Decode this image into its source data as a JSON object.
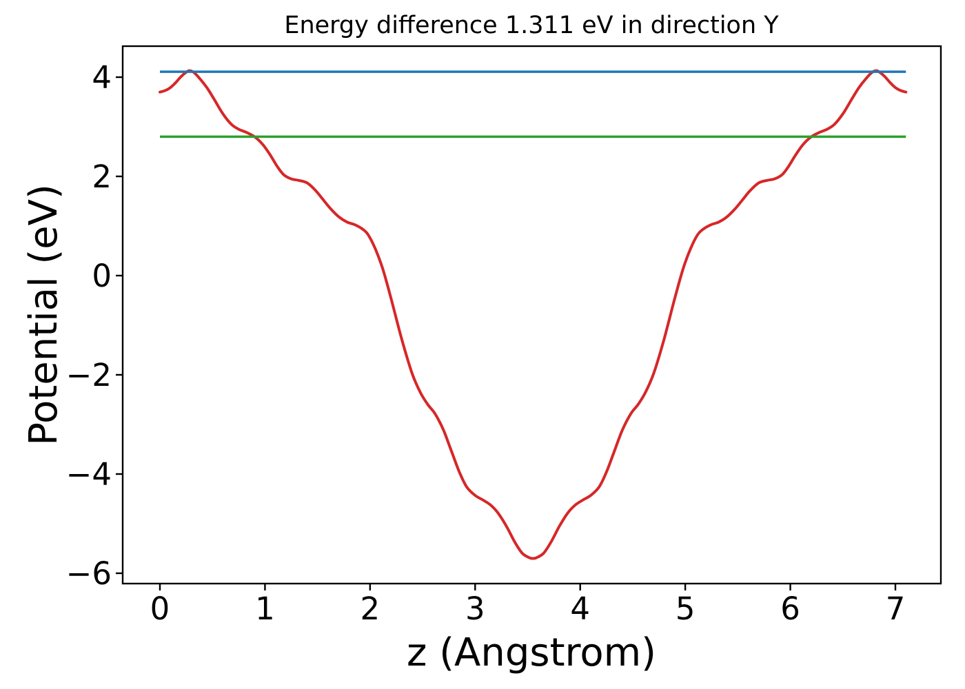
{
  "figure": {
    "background": "#ffffff",
    "text_color": "#000000"
  },
  "chart_data": {
    "type": "line",
    "title": "Energy difference 1.311 eV in direction Y",
    "xlabel": "z (Angstrom)",
    "ylabel": "Potential (eV)",
    "energy_difference_ev": 1.311,
    "direction": "Y",
    "xlim": [
      -0.355,
      7.433
    ],
    "ylim": [
      -6.21,
      4.63
    ],
    "x_ticks": [
      0,
      1,
      2,
      3,
      4,
      5,
      6,
      7
    ],
    "y_ticks": [
      4,
      2,
      0,
      -2,
      -4,
      -6
    ],
    "grid": false,
    "legend": "none",
    "series": [
      {
        "name": "potential-curve",
        "kind": "curve",
        "color": "#d62728",
        "line_width": 4,
        "points": [
          [
            0.0,
            3.7
          ],
          [
            0.05,
            3.73
          ],
          [
            0.1,
            3.79
          ],
          [
            0.15,
            3.89
          ],
          [
            0.2,
            4.01
          ],
          [
            0.25,
            4.1
          ],
          [
            0.28,
            4.13
          ],
          [
            0.32,
            4.1
          ],
          [
            0.38,
            3.97
          ],
          [
            0.45,
            3.78
          ],
          [
            0.52,
            3.54
          ],
          [
            0.6,
            3.26
          ],
          [
            0.68,
            3.05
          ],
          [
            0.75,
            2.95
          ],
          [
            0.82,
            2.89
          ],
          [
            0.9,
            2.8
          ],
          [
            0.98,
            2.64
          ],
          [
            1.05,
            2.43
          ],
          [
            1.12,
            2.19
          ],
          [
            1.18,
            2.03
          ],
          [
            1.25,
            1.95
          ],
          [
            1.32,
            1.92
          ],
          [
            1.4,
            1.87
          ],
          [
            1.48,
            1.72
          ],
          [
            1.55,
            1.54
          ],
          [
            1.62,
            1.36
          ],
          [
            1.7,
            1.19
          ],
          [
            1.78,
            1.08
          ],
          [
            1.85,
            1.03
          ],
          [
            1.92,
            0.95
          ],
          [
            1.98,
            0.83
          ],
          [
            2.05,
            0.54
          ],
          [
            2.12,
            0.14
          ],
          [
            2.2,
            -0.46
          ],
          [
            2.3,
            -1.27
          ],
          [
            2.4,
            -1.97
          ],
          [
            2.48,
            -2.36
          ],
          [
            2.55,
            -2.6
          ],
          [
            2.62,
            -2.79
          ],
          [
            2.7,
            -3.12
          ],
          [
            2.78,
            -3.57
          ],
          [
            2.85,
            -3.96
          ],
          [
            2.92,
            -4.26
          ],
          [
            3.0,
            -4.43
          ],
          [
            3.08,
            -4.53
          ],
          [
            3.15,
            -4.63
          ],
          [
            3.22,
            -4.79
          ],
          [
            3.3,
            -5.06
          ],
          [
            3.38,
            -5.38
          ],
          [
            3.45,
            -5.6
          ],
          [
            3.52,
            -5.69
          ],
          [
            3.55,
            -5.7
          ],
          [
            3.58,
            -5.69
          ],
          [
            3.65,
            -5.6
          ],
          [
            3.72,
            -5.38
          ],
          [
            3.8,
            -5.06
          ],
          [
            3.88,
            -4.79
          ],
          [
            3.95,
            -4.63
          ],
          [
            4.02,
            -4.53
          ],
          [
            4.1,
            -4.43
          ],
          [
            4.18,
            -4.26
          ],
          [
            4.25,
            -3.96
          ],
          [
            4.32,
            -3.57
          ],
          [
            4.4,
            -3.12
          ],
          [
            4.48,
            -2.79
          ],
          [
            4.55,
            -2.6
          ],
          [
            4.62,
            -2.36
          ],
          [
            4.7,
            -1.97
          ],
          [
            4.8,
            -1.27
          ],
          [
            4.9,
            -0.46
          ],
          [
            4.98,
            0.14
          ],
          [
            5.05,
            0.54
          ],
          [
            5.12,
            0.83
          ],
          [
            5.18,
            0.95
          ],
          [
            5.25,
            1.03
          ],
          [
            5.32,
            1.08
          ],
          [
            5.4,
            1.19
          ],
          [
            5.48,
            1.36
          ],
          [
            5.55,
            1.54
          ],
          [
            5.62,
            1.72
          ],
          [
            5.7,
            1.87
          ],
          [
            5.78,
            1.92
          ],
          [
            5.85,
            1.95
          ],
          [
            5.92,
            2.03
          ],
          [
            5.98,
            2.19
          ],
          [
            6.05,
            2.43
          ],
          [
            6.12,
            2.64
          ],
          [
            6.2,
            2.8
          ],
          [
            6.28,
            2.89
          ],
          [
            6.35,
            2.95
          ],
          [
            6.42,
            3.05
          ],
          [
            6.5,
            3.26
          ],
          [
            6.58,
            3.54
          ],
          [
            6.65,
            3.78
          ],
          [
            6.72,
            3.97
          ],
          [
            6.78,
            4.1
          ],
          [
            6.82,
            4.13
          ],
          [
            6.85,
            4.1
          ],
          [
            6.9,
            4.01
          ],
          [
            6.95,
            3.89
          ],
          [
            7.0,
            3.79
          ],
          [
            7.05,
            3.73
          ],
          [
            7.1,
            3.7
          ]
        ]
      },
      {
        "name": "upper-hline",
        "kind": "hline",
        "color": "#1f77b4",
        "line_width": 3.5,
        "y": 4.11,
        "x_range": [
          0,
          7.1
        ]
      },
      {
        "name": "lower-hline",
        "kind": "hline",
        "color": "#2ca02c",
        "line_width": 3.5,
        "y": 2.8,
        "x_range": [
          0,
          7.1
        ]
      }
    ]
  }
}
